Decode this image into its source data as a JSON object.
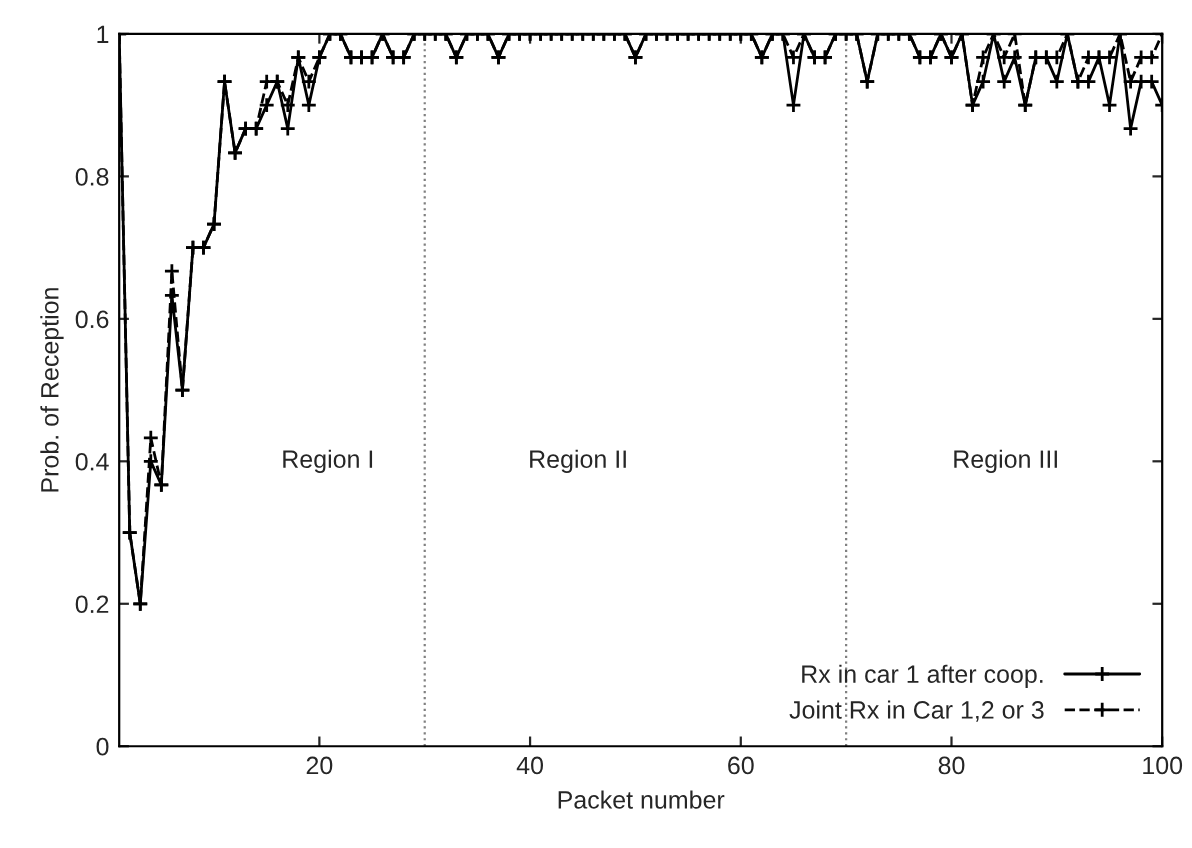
{
  "chart_data": {
    "type": "line",
    "xlabel": "Packet number",
    "ylabel": "Prob. of Reception",
    "x": [
      1,
      2,
      3,
      4,
      5,
      6,
      7,
      8,
      9,
      10,
      11,
      12,
      13,
      14,
      15,
      16,
      17,
      18,
      19,
      20,
      21,
      22,
      23,
      24,
      25,
      26,
      27,
      28,
      29,
      30,
      31,
      32,
      33,
      34,
      35,
      36,
      37,
      38,
      39,
      40,
      41,
      42,
      43,
      44,
      45,
      46,
      47,
      48,
      49,
      50,
      51,
      52,
      53,
      54,
      55,
      56,
      57,
      58,
      59,
      60,
      61,
      62,
      63,
      64,
      65,
      66,
      67,
      68,
      69,
      70,
      71,
      72,
      73,
      74,
      75,
      76,
      77,
      78,
      79,
      80,
      81,
      82,
      83,
      84,
      85,
      86,
      87,
      88,
      89,
      90,
      91,
      92,
      93,
      94,
      95,
      96,
      97,
      98,
      99,
      100
    ],
    "series": [
      {
        "name": "Rx in car 1 after coop.",
        "color": "#000000",
        "marker": "cross",
        "line_style": "solid",
        "values": [
          1,
          0.3,
          0.2,
          0.4,
          0.367,
          0.633,
          0.5,
          0.7,
          0.7,
          0.733,
          0.933,
          0.833,
          0.867,
          0.867,
          0.9,
          0.933,
          0.867,
          0.967,
          0.9,
          0.967,
          1,
          1,
          0.967,
          0.967,
          0.967,
          1,
          0.967,
          0.967,
          1,
          1,
          1,
          1,
          0.967,
          1,
          1,
          1,
          0.967,
          1,
          1,
          1,
          1,
          1,
          1,
          1,
          1,
          1,
          1,
          1,
          1,
          0.967,
          1,
          1,
          1,
          1,
          1,
          1,
          1,
          1,
          1,
          1,
          1,
          0.967,
          1,
          1,
          0.9,
          1,
          0.967,
          0.967,
          1,
          1,
          1,
          0.933,
          1,
          1,
          1,
          1,
          0.967,
          0.967,
          1,
          0.967,
          1,
          0.9,
          0.933,
          1,
          0.933,
          0.967,
          0.9,
          0.967,
          0.967,
          0.933,
          1,
          0.933,
          0.933,
          0.967,
          0.9,
          1,
          0.867,
          0.933,
          0.933,
          0.9
        ]
      },
      {
        "name": "Joint Rx in Car 1,2 or 3",
        "color": "#000000",
        "marker": "cross",
        "line_style": "dashed",
        "values": [
          1,
          0.3,
          0.2,
          0.433,
          0.367,
          0.667,
          0.5,
          0.7,
          0.7,
          0.733,
          0.933,
          0.833,
          0.867,
          0.867,
          0.933,
          0.933,
          0.9,
          0.967,
          0.933,
          0.967,
          1,
          1,
          0.967,
          0.967,
          0.967,
          1,
          0.967,
          0.967,
          1,
          1,
          1,
          1,
          0.967,
          1,
          1,
          1,
          0.967,
          1,
          1,
          1,
          1,
          1,
          1,
          1,
          1,
          1,
          1,
          1,
          1,
          0.967,
          1,
          1,
          1,
          1,
          1,
          1,
          1,
          1,
          1,
          1,
          1,
          0.967,
          1,
          1,
          0.967,
          1,
          0.967,
          0.967,
          1,
          1,
          1,
          0.933,
          1,
          1,
          1,
          1,
          0.967,
          0.967,
          1,
          0.967,
          1,
          0.9,
          0.967,
          1,
          0.967,
          1,
          0.9,
          0.967,
          0.967,
          0.967,
          1,
          0.933,
          0.967,
          0.967,
          0.967,
          1,
          0.933,
          0.967,
          0.967,
          1
        ]
      }
    ],
    "xlim": [
      1,
      100
    ],
    "xticks": [
      20,
      40,
      60,
      80,
      100
    ],
    "ylim": [
      0,
      1
    ],
    "yticks": [
      0,
      0.2,
      0.4,
      0.6,
      0.8,
      1
    ],
    "ref_lines": [
      {
        "axis": "x",
        "value": 30,
        "color": "#808080",
        "line_style": "dotted"
      },
      {
        "axis": "x",
        "value": 70,
        "color": "#808080",
        "line_style": "dotted"
      }
    ],
    "annotations": [
      "Region I",
      "Region II",
      "Region III"
    ],
    "legend": "bottom right",
    "grid": false
  }
}
